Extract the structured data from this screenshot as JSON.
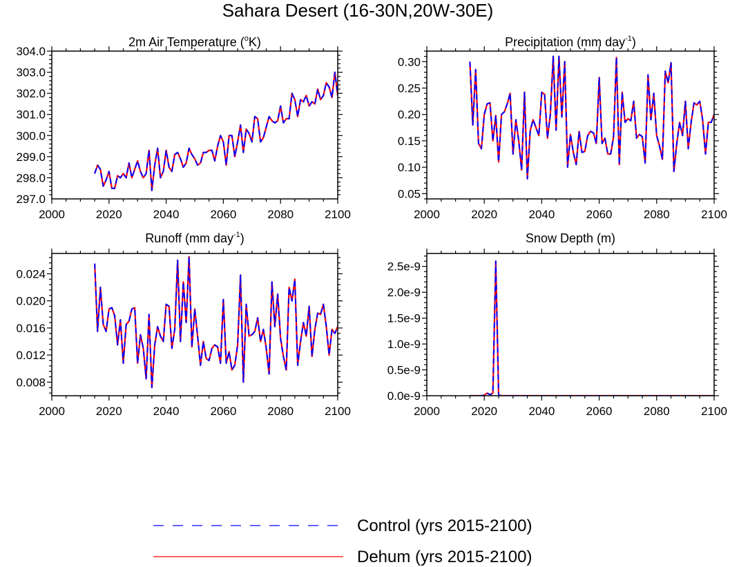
{
  "figure": {
    "title": "Sahara Desert (16-30N,20W-30E)"
  },
  "legend": {
    "items": [
      {
        "label": "Control (yrs 2015-2100)",
        "color": "#0000ff",
        "style": "dashed"
      },
      {
        "label": "Dehum (yrs 2015-2100)",
        "color": "#ff0000",
        "style": "solid"
      }
    ]
  },
  "chart_data": [
    {
      "type": "line",
      "title": "2m Air Temperature (°K)",
      "title_parts": {
        "pre": "2m Air Temperature (",
        "sup": "o",
        "post": "K)"
      },
      "xlabel": "",
      "ylabel": "",
      "xlim": [
        2000,
        2100
      ],
      "ylim": [
        297.0,
        304.0
      ],
      "xticks": [
        2000,
        2020,
        2040,
        2060,
        2080,
        2100
      ],
      "xtick_labels": [
        "2000",
        "2020",
        "2040",
        "2060",
        "2080",
        "2100"
      ],
      "yticks": [
        297.0,
        298.0,
        299.0,
        300.0,
        301.0,
        302.0,
        303.0,
        304.0
      ],
      "ytick_labels": [
        "297.0",
        "298.0",
        "299.0",
        "300.0",
        "301.0",
        "302.0",
        "303.0",
        "304.0"
      ],
      "x_start": 2015,
      "series": [
        {
          "name": "Control (yrs 2015-2100)",
          "color": "#0000ff",
          "dashed": true,
          "values": [
            298.2,
            298.6,
            298.4,
            297.6,
            297.9,
            298.3,
            297.5,
            297.5,
            298.1,
            298.0,
            298.2,
            298.0,
            298.7,
            298.0,
            298.4,
            298.8,
            298.3,
            298.0,
            298.2,
            299.3,
            297.4,
            298.6,
            299.4,
            298.0,
            298.3,
            299.3,
            298.5,
            298.3,
            299.1,
            299.2,
            298.9,
            298.5,
            298.7,
            299.4,
            299.1,
            298.9,
            298.6,
            298.7,
            299.2,
            299.2,
            299.3,
            299.3,
            298.8,
            299.5,
            300.0,
            299.7,
            298.6,
            300.0,
            300.0,
            299.0,
            299.7,
            300.5,
            299.2,
            300.3,
            300.1,
            299.7,
            300.9,
            300.8,
            299.7,
            299.9,
            300.4,
            300.9,
            300.7,
            300.6,
            300.7,
            301.4,
            300.6,
            300.8,
            300.8,
            302.0,
            301.7,
            300.9,
            301.7,
            301.6,
            301.9,
            301.4,
            301.6,
            301.5,
            302.2,
            301.7,
            301.9,
            302.5,
            302.3,
            301.8,
            303.0,
            301.9,
            302.5
          ]
        },
        {
          "name": "Dehum (yrs 2015-2100)",
          "color": "#ff0000",
          "dashed": false,
          "values": [
            298.2,
            298.6,
            298.4,
            297.6,
            297.9,
            298.3,
            297.5,
            297.5,
            298.1,
            298.0,
            298.2,
            298.0,
            298.7,
            298.0,
            298.4,
            298.8,
            298.3,
            298.0,
            298.2,
            299.3,
            297.4,
            298.6,
            299.4,
            298.0,
            298.3,
            299.3,
            298.5,
            298.3,
            299.1,
            299.2,
            298.9,
            298.5,
            298.7,
            299.4,
            299.1,
            298.9,
            298.6,
            298.7,
            299.2,
            299.2,
            299.3,
            299.3,
            298.8,
            299.5,
            300.0,
            299.7,
            298.6,
            300.0,
            300.0,
            299.0,
            299.7,
            300.5,
            299.2,
            300.3,
            300.1,
            299.7,
            300.9,
            300.8,
            299.7,
            299.9,
            300.4,
            300.9,
            300.7,
            300.6,
            300.7,
            301.4,
            300.6,
            300.8,
            300.8,
            302.0,
            301.7,
            300.9,
            301.7,
            301.6,
            301.9,
            301.4,
            301.6,
            301.5,
            302.2,
            301.7,
            301.9,
            302.5,
            302.3,
            301.8,
            303.0,
            301.9,
            302.5
          ]
        }
      ]
    },
    {
      "type": "line",
      "title": "Precipitation (mm day-1)",
      "title_parts": {
        "pre": "Precipitation (mm day",
        "sup": "-1",
        "post": ")"
      },
      "xlabel": "",
      "ylabel": "",
      "xlim": [
        2000,
        2100
      ],
      "ylim": [
        0.04,
        0.32
      ],
      "xticks": [
        2000,
        2020,
        2040,
        2060,
        2080,
        2100
      ],
      "xtick_labels": [
        "2000",
        "2020",
        "2040",
        "2060",
        "2080",
        "2100"
      ],
      "yticks": [
        0.05,
        0.1,
        0.15,
        0.2,
        0.25,
        0.3
      ],
      "ytick_labels": [
        "0.05",
        "0.10",
        "0.15",
        "0.20",
        "0.25",
        "0.30"
      ],
      "x_start": 2015,
      "series": [
        {
          "name": "Control (yrs 2015-2100)",
          "color": "#0000ff",
          "dashed": true,
          "values": [
            0.3,
            0.18,
            0.285,
            0.145,
            0.135,
            0.2,
            0.22,
            0.222,
            0.15,
            0.198,
            0.11,
            0.2,
            0.205,
            0.22,
            0.24,
            0.125,
            0.19,
            0.15,
            0.095,
            0.242,
            0.078,
            0.17,
            0.19,
            0.175,
            0.16,
            0.242,
            0.238,
            0.155,
            0.2,
            0.31,
            0.17,
            0.31,
            0.195,
            0.3,
            0.1,
            0.162,
            0.128,
            0.105,
            0.168,
            0.128,
            0.13,
            0.16,
            0.168,
            0.165,
            0.145,
            0.27,
            0.145,
            0.155,
            0.125,
            0.125,
            0.158,
            0.308,
            0.105,
            0.242,
            0.185,
            0.192,
            0.188,
            0.225,
            0.155,
            0.162,
            0.158,
            0.108,
            0.275,
            0.19,
            0.24,
            0.16,
            0.14,
            0.115,
            0.282,
            0.26,
            0.298,
            0.092,
            0.145,
            0.185,
            0.16,
            0.225,
            0.135,
            0.185,
            0.222,
            0.218,
            0.225,
            0.19,
            0.125,
            0.185,
            0.185,
            0.2,
            0.21
          ]
        },
        {
          "name": "Dehum (yrs 2015-2100)",
          "color": "#ff0000",
          "dashed": false,
          "values": [
            0.3,
            0.18,
            0.285,
            0.145,
            0.135,
            0.2,
            0.22,
            0.222,
            0.15,
            0.198,
            0.11,
            0.2,
            0.205,
            0.22,
            0.24,
            0.125,
            0.19,
            0.15,
            0.095,
            0.242,
            0.078,
            0.17,
            0.19,
            0.175,
            0.16,
            0.242,
            0.238,
            0.155,
            0.2,
            0.31,
            0.17,
            0.31,
            0.195,
            0.3,
            0.1,
            0.162,
            0.128,
            0.105,
            0.168,
            0.128,
            0.13,
            0.16,
            0.168,
            0.165,
            0.145,
            0.27,
            0.145,
            0.155,
            0.125,
            0.125,
            0.158,
            0.308,
            0.105,
            0.242,
            0.185,
            0.192,
            0.188,
            0.225,
            0.155,
            0.162,
            0.158,
            0.108,
            0.275,
            0.19,
            0.24,
            0.16,
            0.14,
            0.115,
            0.282,
            0.26,
            0.298,
            0.092,
            0.145,
            0.185,
            0.16,
            0.225,
            0.135,
            0.185,
            0.222,
            0.218,
            0.225,
            0.19,
            0.125,
            0.185,
            0.185,
            0.2,
            0.21
          ]
        }
      ]
    },
    {
      "type": "line",
      "title": "Runoff (mm day-1)",
      "title_parts": {
        "pre": "Runoff (mm day",
        "sup": "-1",
        "post": ")"
      },
      "xlabel": "",
      "ylabel": "",
      "xlim": [
        2000,
        2100
      ],
      "ylim": [
        0.006,
        0.027
      ],
      "xticks": [
        2000,
        2020,
        2040,
        2060,
        2080,
        2100
      ],
      "xtick_labels": [
        "2000",
        "2020",
        "2040",
        "2060",
        "2080",
        "2100"
      ],
      "yticks": [
        0.008,
        0.012,
        0.016,
        0.02,
        0.024
      ],
      "ytick_labels": [
        "0.008",
        "0.012",
        "0.016",
        "0.020",
        "0.024"
      ],
      "x_start": 2015,
      "series": [
        {
          "name": "Control (yrs 2015-2100)",
          "color": "#0000ff",
          "dashed": true,
          "values": [
            0.0255,
            0.0155,
            0.022,
            0.0165,
            0.0155,
            0.0188,
            0.019,
            0.0178,
            0.0135,
            0.0172,
            0.0108,
            0.0165,
            0.017,
            0.0188,
            0.019,
            0.0108,
            0.015,
            0.013,
            0.0085,
            0.018,
            0.0072,
            0.0135,
            0.0162,
            0.0148,
            0.014,
            0.0195,
            0.0192,
            0.013,
            0.0158,
            0.026,
            0.014,
            0.0228,
            0.0168,
            0.0265,
            0.0132,
            0.0188,
            0.0148,
            0.0105,
            0.014,
            0.0115,
            0.0112,
            0.013,
            0.0135,
            0.0132,
            0.0108,
            0.0202,
            0.0108,
            0.0125,
            0.0098,
            0.0105,
            0.0135,
            0.0238,
            0.008,
            0.0195,
            0.0148,
            0.015,
            0.0155,
            0.0175,
            0.014,
            0.0158,
            0.013,
            0.0092,
            0.0228,
            0.0162,
            0.021,
            0.0145,
            0.0118,
            0.0098,
            0.022,
            0.02,
            0.0232,
            0.0105,
            0.014,
            0.0168,
            0.0148,
            0.0192,
            0.0118,
            0.0158,
            0.0182,
            0.018,
            0.0195,
            0.0162,
            0.012,
            0.0158,
            0.0152,
            0.0162,
            0.0172
          ]
        },
        {
          "name": "Dehum (yrs 2015-2100)",
          "color": "#ff0000",
          "dashed": false,
          "values": [
            0.0255,
            0.0155,
            0.022,
            0.0165,
            0.0155,
            0.0188,
            0.019,
            0.0178,
            0.0135,
            0.0172,
            0.0108,
            0.0165,
            0.017,
            0.0188,
            0.019,
            0.0108,
            0.015,
            0.013,
            0.0085,
            0.018,
            0.0072,
            0.0135,
            0.0162,
            0.0148,
            0.014,
            0.0195,
            0.0192,
            0.013,
            0.0158,
            0.026,
            0.014,
            0.0228,
            0.0168,
            0.0265,
            0.0132,
            0.0188,
            0.0148,
            0.0105,
            0.014,
            0.0115,
            0.0112,
            0.013,
            0.0135,
            0.0132,
            0.0108,
            0.0202,
            0.0108,
            0.0125,
            0.0098,
            0.0105,
            0.0135,
            0.0238,
            0.008,
            0.0195,
            0.0148,
            0.015,
            0.0155,
            0.0175,
            0.014,
            0.0158,
            0.013,
            0.0092,
            0.0228,
            0.0162,
            0.021,
            0.0145,
            0.0118,
            0.0098,
            0.022,
            0.02,
            0.0232,
            0.0105,
            0.014,
            0.0168,
            0.0148,
            0.0192,
            0.0118,
            0.0158,
            0.0182,
            0.018,
            0.0195,
            0.0162,
            0.012,
            0.0158,
            0.0152,
            0.0162,
            0.0172
          ]
        }
      ]
    },
    {
      "type": "line",
      "title": "Snow Depth (m)",
      "title_parts": {
        "pre": "Snow Depth (m)",
        "sup": "",
        "post": ""
      },
      "xlabel": "",
      "ylabel": "",
      "xlim": [
        2000,
        2100
      ],
      "ylim": [
        0.0,
        2.75e-09
      ],
      "xticks": [
        2000,
        2020,
        2040,
        2060,
        2080,
        2100
      ],
      "xtick_labels": [
        "2000",
        "2020",
        "2040",
        "2060",
        "2080",
        "2100"
      ],
      "yticks": [
        0.0,
        5e-10,
        1e-09,
        1.5e-09,
        2e-09,
        2.5e-09
      ],
      "ytick_labels": [
        "0.0e-9",
        "0.5e-9",
        "1.0e-9",
        "1.5e-9",
        "2.0e-9",
        "2.5e-9"
      ],
      "x_start": 2015,
      "series": [
        {
          "name": "Control (yrs 2015-2100)",
          "color": "#0000ff",
          "dashed": true,
          "values": [
            0,
            0,
            0,
            0,
            0,
            1e-11,
            5e-11,
            2e-11,
            5e-11,
            2.6e-09,
            1e-11,
            0,
            0,
            0,
            0,
            0,
            0,
            0,
            0,
            0,
            0,
            0,
            0,
            0,
            0,
            0,
            0,
            0,
            0,
            0,
            0,
            0,
            0,
            0,
            0,
            0,
            0,
            0,
            0,
            0,
            0,
            0,
            0,
            0,
            0,
            0,
            0,
            0,
            0,
            0,
            0,
            0,
            0,
            0,
            0,
            0,
            0,
            0,
            0,
            0,
            0,
            0,
            0,
            0,
            0,
            0,
            0,
            0,
            0,
            0,
            0,
            0,
            0,
            0,
            0,
            0,
            0,
            0,
            0,
            0,
            0,
            0,
            0,
            0,
            0,
            0,
            0
          ]
        },
        {
          "name": "Dehum (yrs 2015-2100)",
          "color": "#ff0000",
          "dashed": false,
          "values": [
            0,
            0,
            0,
            0,
            0,
            1e-11,
            5e-11,
            2e-11,
            5e-11,
            2.6e-09,
            1e-11,
            0,
            0,
            0,
            0,
            0,
            0,
            0,
            0,
            0,
            0,
            0,
            0,
            0,
            0,
            0,
            0,
            0,
            0,
            0,
            0,
            0,
            0,
            0,
            0,
            0,
            0,
            0,
            0,
            0,
            0,
            0,
            0,
            0,
            0,
            0,
            0,
            0,
            0,
            0,
            0,
            0,
            0,
            0,
            0,
            0,
            0,
            0,
            0,
            0,
            0,
            0,
            0,
            0,
            0,
            0,
            0,
            0,
            0,
            0,
            0,
            0,
            0,
            0,
            0,
            0,
            0,
            0,
            0,
            0,
            0,
            0,
            0,
            0,
            0,
            0,
            0
          ]
        }
      ]
    }
  ]
}
